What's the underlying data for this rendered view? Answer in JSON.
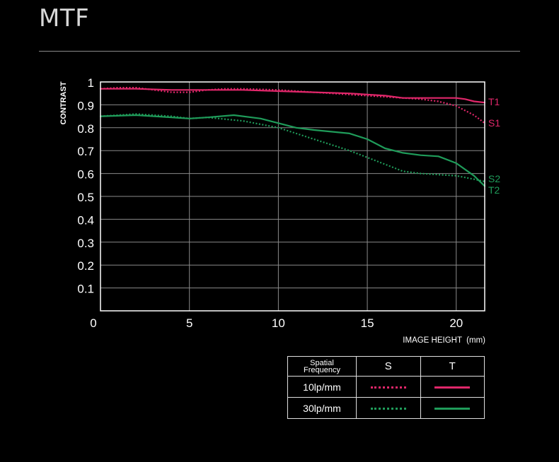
{
  "page": {
    "title": "MTF"
  },
  "colors": {
    "red": "#e0276a",
    "green": "#1f9c5a",
    "axis": "#ffffff",
    "grid": "#8a8a8a"
  },
  "chart_data": {
    "type": "line",
    "title": "MTF",
    "xlabel": "IMAGE HEIGHT  (mm)",
    "ylabel": "CONTRAST",
    "xlim": [
      0,
      21.6
    ],
    "ylim": [
      0,
      1
    ],
    "x_ticks": [
      0,
      5,
      10,
      15,
      20
    ],
    "x_tick_labels": [
      "0",
      "5",
      "10",
      "15",
      "20"
    ],
    "y_ticks": [
      0.1,
      0.2,
      0.3,
      0.4,
      0.5,
      0.6,
      0.7,
      0.8,
      0.9,
      1
    ],
    "y_tick_labels": [
      "0.1",
      "0.2",
      "0.3",
      "0.4",
      "0.5",
      "0.6",
      "0.7",
      "0.8",
      "0.9",
      "1"
    ],
    "grid": true,
    "series": [
      {
        "name": "T1",
        "frequency": "10lp/mm",
        "orientation": "T",
        "color": "#e0276a",
        "style": "solid",
        "x": [
          0,
          2,
          4,
          6,
          8,
          10,
          12,
          14,
          15,
          16,
          17,
          18,
          19,
          20,
          20.5,
          21,
          21.6
        ],
        "y": [
          0.97,
          0.97,
          0.965,
          0.965,
          0.965,
          0.96,
          0.955,
          0.95,
          0.945,
          0.94,
          0.93,
          0.93,
          0.93,
          0.93,
          0.925,
          0.915,
          0.91
        ]
      },
      {
        "name": "S1",
        "frequency": "10lp/mm",
        "orientation": "S",
        "color": "#e0276a",
        "style": "dotted",
        "x": [
          0,
          1,
          2,
          3,
          4,
          5,
          6,
          7,
          8,
          10,
          12,
          14,
          16,
          18,
          19,
          20,
          20.5,
          21,
          21.6
        ],
        "y": [
          0.97,
          0.975,
          0.975,
          0.965,
          0.955,
          0.955,
          0.965,
          0.97,
          0.97,
          0.965,
          0.955,
          0.945,
          0.935,
          0.925,
          0.915,
          0.895,
          0.875,
          0.855,
          0.82
        ]
      },
      {
        "name": "S2",
        "frequency": "30lp/mm",
        "orientation": "S",
        "color": "#1f9c5a",
        "style": "dotted",
        "x": [
          0,
          2,
          4,
          5,
          6,
          8,
          10,
          12,
          14,
          16,
          17,
          18,
          19,
          20,
          21,
          21.6
        ],
        "y": [
          0.85,
          0.86,
          0.85,
          0.84,
          0.845,
          0.83,
          0.8,
          0.75,
          0.7,
          0.64,
          0.61,
          0.6,
          0.595,
          0.59,
          0.575,
          0.565
        ]
      },
      {
        "name": "T2",
        "frequency": "30lp/mm",
        "orientation": "T",
        "color": "#1f9c5a",
        "style": "solid",
        "x": [
          0,
          2,
          4,
          5,
          6,
          7.5,
          9,
          10,
          11,
          12,
          14,
          15,
          16,
          17,
          18,
          19,
          20,
          21,
          21.6
        ],
        "y": [
          0.85,
          0.855,
          0.845,
          0.84,
          0.845,
          0.855,
          0.84,
          0.82,
          0.8,
          0.79,
          0.775,
          0.75,
          0.71,
          0.69,
          0.68,
          0.675,
          0.645,
          0.59,
          0.545
        ]
      }
    ],
    "series_labels": [
      {
        "text": "T1",
        "color": "#e0276a"
      },
      {
        "text": "S1",
        "color": "#e0276a"
      },
      {
        "text": "S2",
        "color": "#1f9c5a"
      },
      {
        "text": "T2",
        "color": "#1f9c5a"
      }
    ],
    "legend": {
      "placement": "bottom-right",
      "header_line1": "Spatial",
      "header_line2": "Frequency",
      "col_s": "S",
      "col_t": "T",
      "rows": [
        {
          "label": "10lp/mm",
          "color": "#e0276a"
        },
        {
          "label": "30lp/mm",
          "color": "#1f9c5a"
        }
      ]
    }
  }
}
